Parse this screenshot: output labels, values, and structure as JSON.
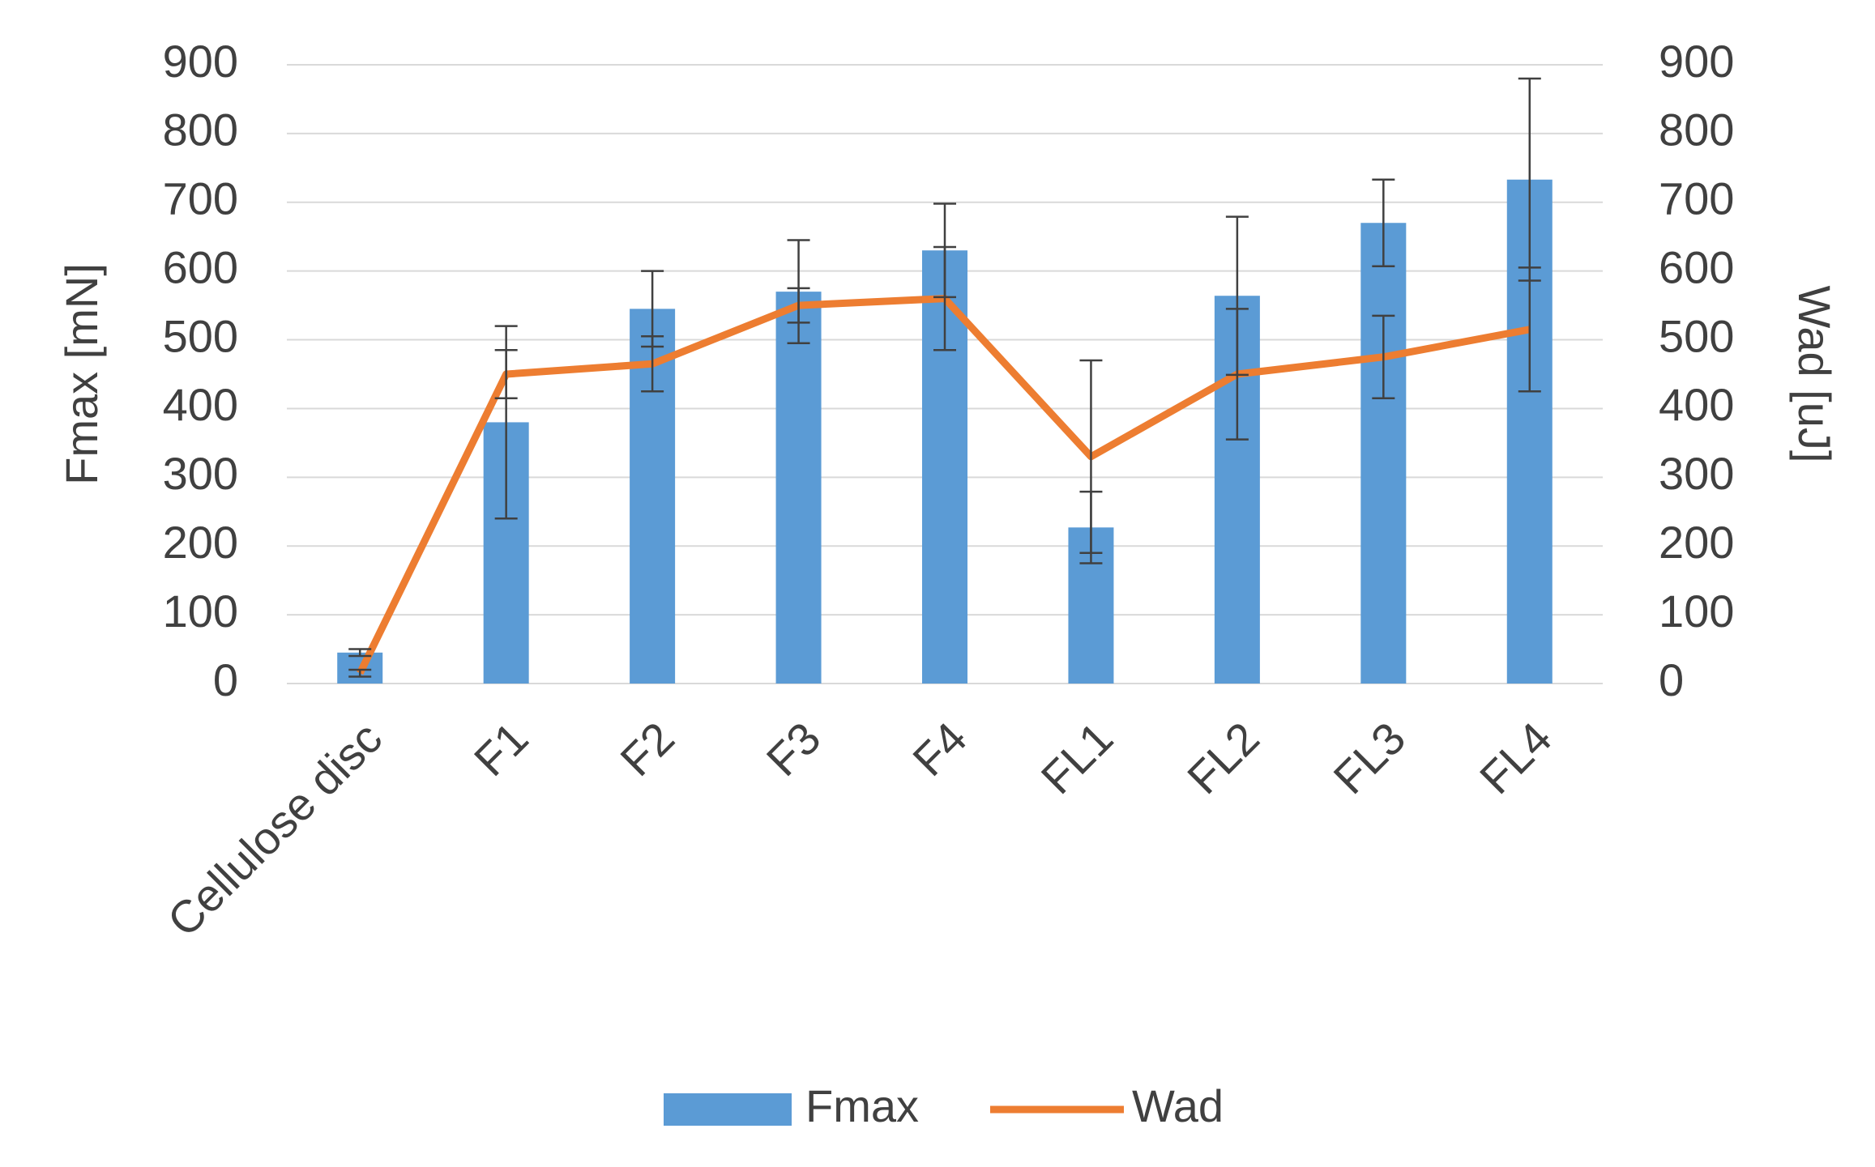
{
  "chart_data": {
    "type": "bar-line",
    "categories": [
      "Cellulose disc",
      "F1",
      "F2",
      "F3",
      "F4",
      "FL1",
      "FL2",
      "FL3",
      "FL4"
    ],
    "series": [
      {
        "name": "Fmax",
        "type": "bar",
        "color": "#5b9bd5",
        "axis": "y",
        "values": [
          45,
          380,
          545,
          570,
          630,
          227,
          564,
          670,
          733
        ],
        "errors": [
          5,
          140,
          55,
          75,
          68,
          52,
          115,
          63,
          147
        ]
      },
      {
        "name": "Wad",
        "type": "line",
        "color": "#ed7d31",
        "axis": "y2",
        "values": [
          15,
          450,
          465,
          550,
          560,
          330,
          450,
          475,
          515
        ],
        "errors": [
          5,
          35,
          40,
          25,
          75,
          140,
          95,
          60,
          90
        ]
      }
    ],
    "y_label": "Fmax [mN]",
    "y2_label": "Wad [uJ]",
    "ylim": [
      0,
      900
    ],
    "yticks": [
      0,
      100,
      200,
      300,
      400,
      500,
      600,
      700,
      800,
      900
    ],
    "y2lim": [
      0,
      900
    ],
    "y2ticks": [
      0,
      100,
      200,
      300,
      400,
      500,
      600,
      700,
      800,
      900
    ],
    "grid": true,
    "legend": "bottom"
  }
}
